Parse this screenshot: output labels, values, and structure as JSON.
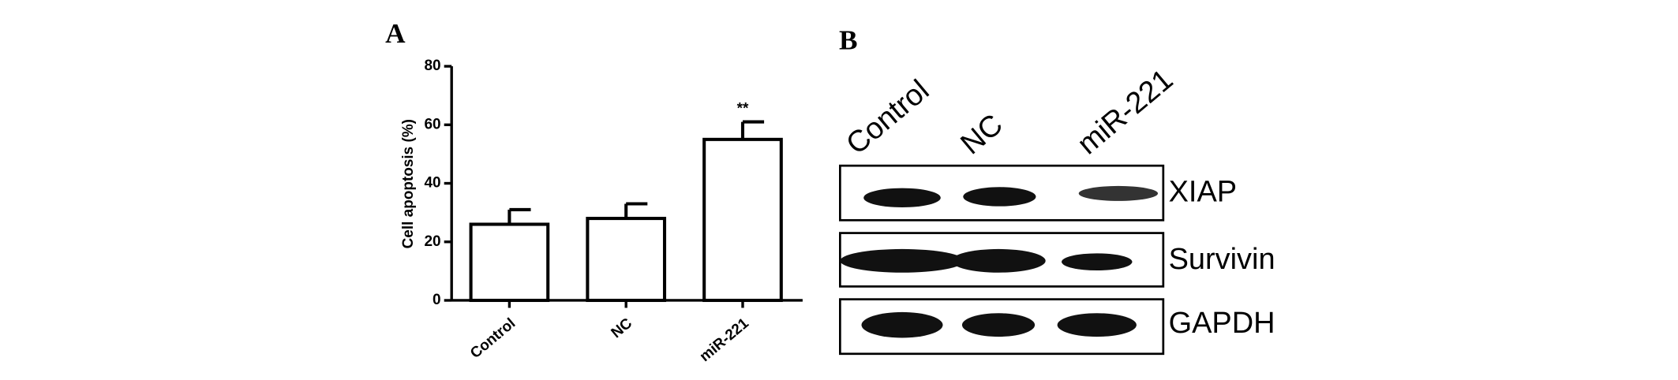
{
  "chart_data": {
    "type": "bar",
    "y_label": "Cell apoptosis (%)",
    "categories": [
      "Control",
      "NC",
      "miR-221"
    ],
    "values": [
      26,
      28,
      55
    ],
    "errors": [
      5,
      5,
      6
    ],
    "annotations": [
      null,
      null,
      "**"
    ],
    "ylim": [
      0,
      80
    ],
    "yticks": [
      0,
      20,
      40,
      60,
      80
    ],
    "color": "#ffffff"
  },
  "panel_labels": [
    "A",
    "B"
  ],
  "blot": {
    "lanes": [
      "Control",
      "NC",
      "miR-221"
    ],
    "rows": [
      "XIAP",
      "Survivin",
      "GAPDH"
    ]
  }
}
